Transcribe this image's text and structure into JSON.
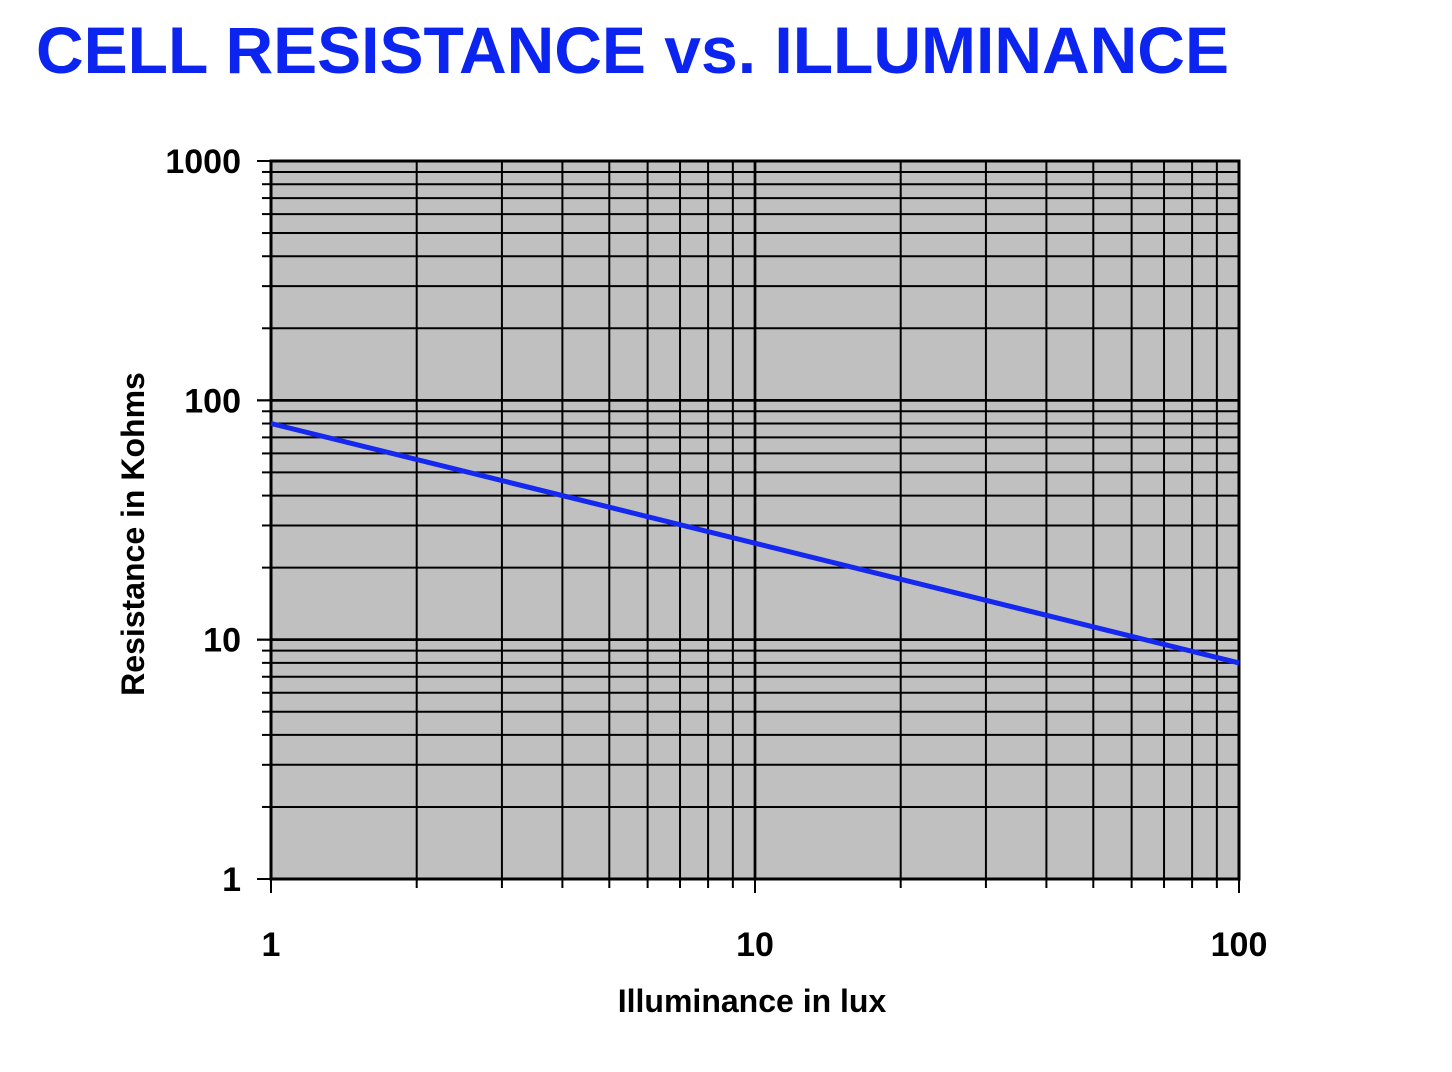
{
  "title": "CELL RESISTANCE vs. ILLUMINANCE",
  "colors": {
    "title": "#0b24f0",
    "series": "#1428f0",
    "plot_background": "#c0c0c0",
    "grid": "#000000"
  },
  "chart_data": {
    "type": "line",
    "title": "CELL RESISTANCE vs. ILLUMINANCE",
    "xlabel": "Illuminance in lux",
    "ylabel": "Resistance in Kohms",
    "xscale": "log",
    "yscale": "log",
    "xlim": [
      1,
      100
    ],
    "ylim": [
      1,
      1000
    ],
    "grid": true,
    "xticks": [
      "1",
      "10",
      "100"
    ],
    "yticks": [
      "1",
      "10",
      "100",
      "1000"
    ],
    "series": [
      {
        "x": [
          1,
          100
        ],
        "y": [
          80,
          8
        ]
      }
    ]
  }
}
